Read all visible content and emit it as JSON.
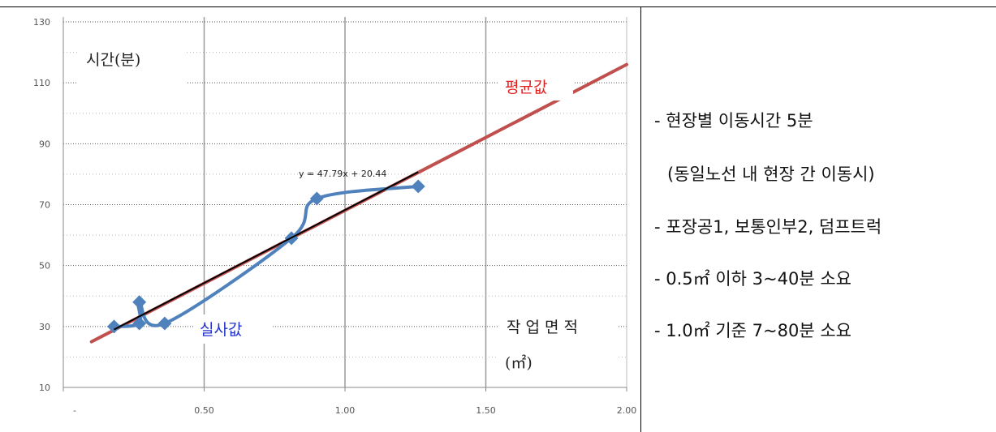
{
  "chart_data": {
    "type": "scatter",
    "xlim": [
      0,
      2.0
    ],
    "ylim": [
      10,
      130
    ],
    "x_ticks": [
      "-",
      "0.50",
      "1.00",
      "1.50",
      "2.00"
    ],
    "y_ticks": [
      "10",
      "30",
      "50",
      "70",
      "90",
      "110",
      "130"
    ],
    "grid": true,
    "series": [
      {
        "role": "actual",
        "color": "#4f81bd",
        "x": [
          0.18,
          0.27,
          0.27,
          0.36,
          0.81,
          0.9,
          1.26
        ],
        "y": [
          30,
          31,
          38,
          31,
          59,
          72,
          76
        ]
      },
      {
        "role": "average",
        "color": "#c0504d",
        "x": [
          0.1,
          2.0
        ],
        "y": [
          25,
          116
        ]
      },
      {
        "role": "trendline",
        "color": "#000000",
        "x": [
          0.18,
          1.26
        ],
        "y": [
          29.0,
          80.7
        ]
      }
    ],
    "equation": "y = 47.79x + 20.44",
    "annotations": {
      "y_axis_label": "시간(분)",
      "average_label": "평균값",
      "actual_label": "실사값",
      "x_axis_label_line1": "작 업 면 적",
      "x_axis_label_line2": "(㎡)"
    }
  },
  "notes": [
    "- 현장별 이동시간 5분",
    "(동일노선 내 현장 간 이동시)",
    "- 포장공1, 보통인부2, 덤프트럭",
    "- 0.5㎡ 이하 3~40분 소요",
    "- 1.0㎡ 기준 7~80분 소요"
  ]
}
